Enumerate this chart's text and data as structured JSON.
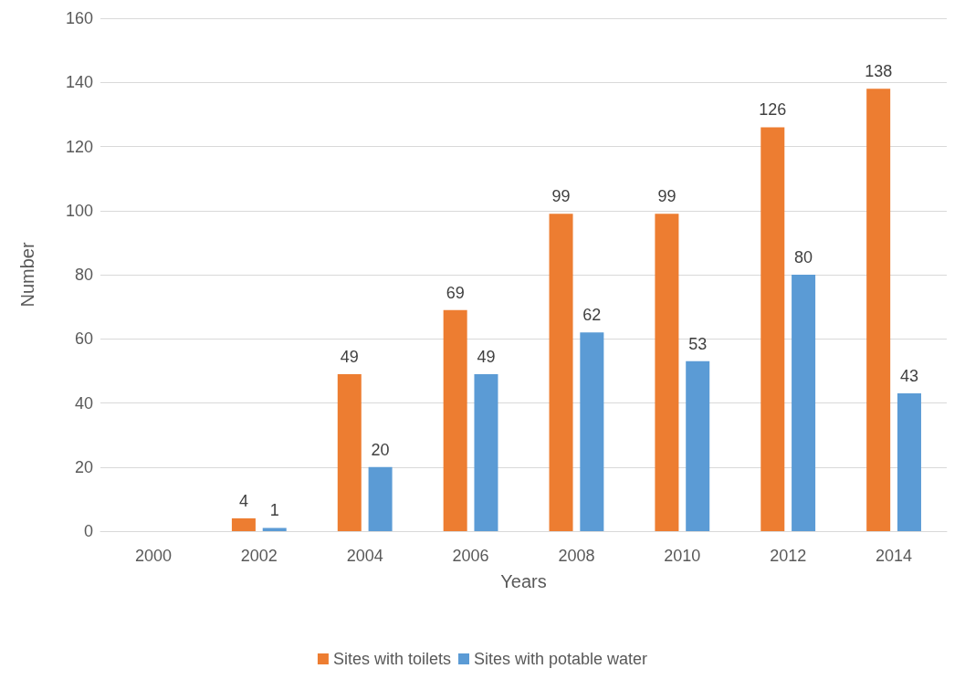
{
  "chart_data": {
    "type": "bar",
    "xlabel": "Years",
    "ylabel": "Number",
    "categories": [
      "2000",
      "2002",
      "2004",
      "2006",
      "2008",
      "2010",
      "2012",
      "2014"
    ],
    "series": [
      {
        "name": "Sites with toilets",
        "color": "#ed7d31",
        "values": [
          null,
          4,
          49,
          69,
          99,
          99,
          126,
          138
        ]
      },
      {
        "name": "Sites with potable water",
        "color": "#5b9bd5",
        "values": [
          null,
          1,
          20,
          49,
          62,
          53,
          80,
          43
        ]
      }
    ],
    "ylim": [
      0,
      160
    ],
    "yticks": [
      0,
      20,
      40,
      60,
      80,
      100,
      120,
      140,
      160
    ],
    "grid": "y",
    "legend": "bottom",
    "data_labels": true
  }
}
